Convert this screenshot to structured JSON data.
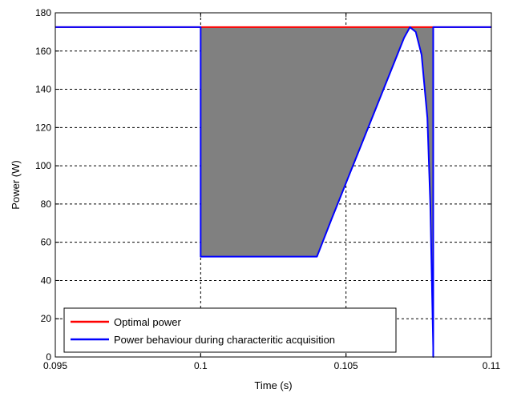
{
  "chart_data": {
    "type": "line",
    "title": "",
    "xlabel": "Time (s)",
    "ylabel": "Power (W)",
    "xlim": [
      0.095,
      0.11
    ],
    "ylim": [
      0,
      180
    ],
    "xticks": [
      "0.095",
      "0.1",
      "0.105",
      "0.11"
    ],
    "yticks": [
      "0",
      "20",
      "40",
      "60",
      "80",
      "100",
      "120",
      "140",
      "160",
      "180"
    ],
    "grid": true,
    "legend_position": "bottom-left",
    "shaded_area": {
      "between": [
        "Optimal power",
        "Power behaviour during characteritic acquisition"
      ],
      "x_range": [
        0.1,
        0.108
      ],
      "color": "#808080"
    },
    "series": [
      {
        "name": "Optimal power",
        "color": "#ff0000",
        "x": [
          0.095,
          0.11
        ],
        "y": [
          172.5,
          172.5
        ]
      },
      {
        "name": "Power behaviour during characteritic acquisition",
        "color": "#0000ff",
        "x": [
          0.095,
          0.1,
          0.1,
          0.104,
          0.1045,
          0.105,
          0.1055,
          0.106,
          0.1065,
          0.107,
          0.1072,
          0.1074,
          0.1076,
          0.1078,
          0.1079,
          0.108,
          0.108,
          0.108,
          0.11
        ],
        "y": [
          172.5,
          172.5,
          52.5,
          52.5,
          72,
          91,
          110,
          129,
          148,
          167,
          172.5,
          170,
          158,
          125,
          80,
          5,
          0,
          172.5,
          172.5
        ]
      }
    ]
  }
}
